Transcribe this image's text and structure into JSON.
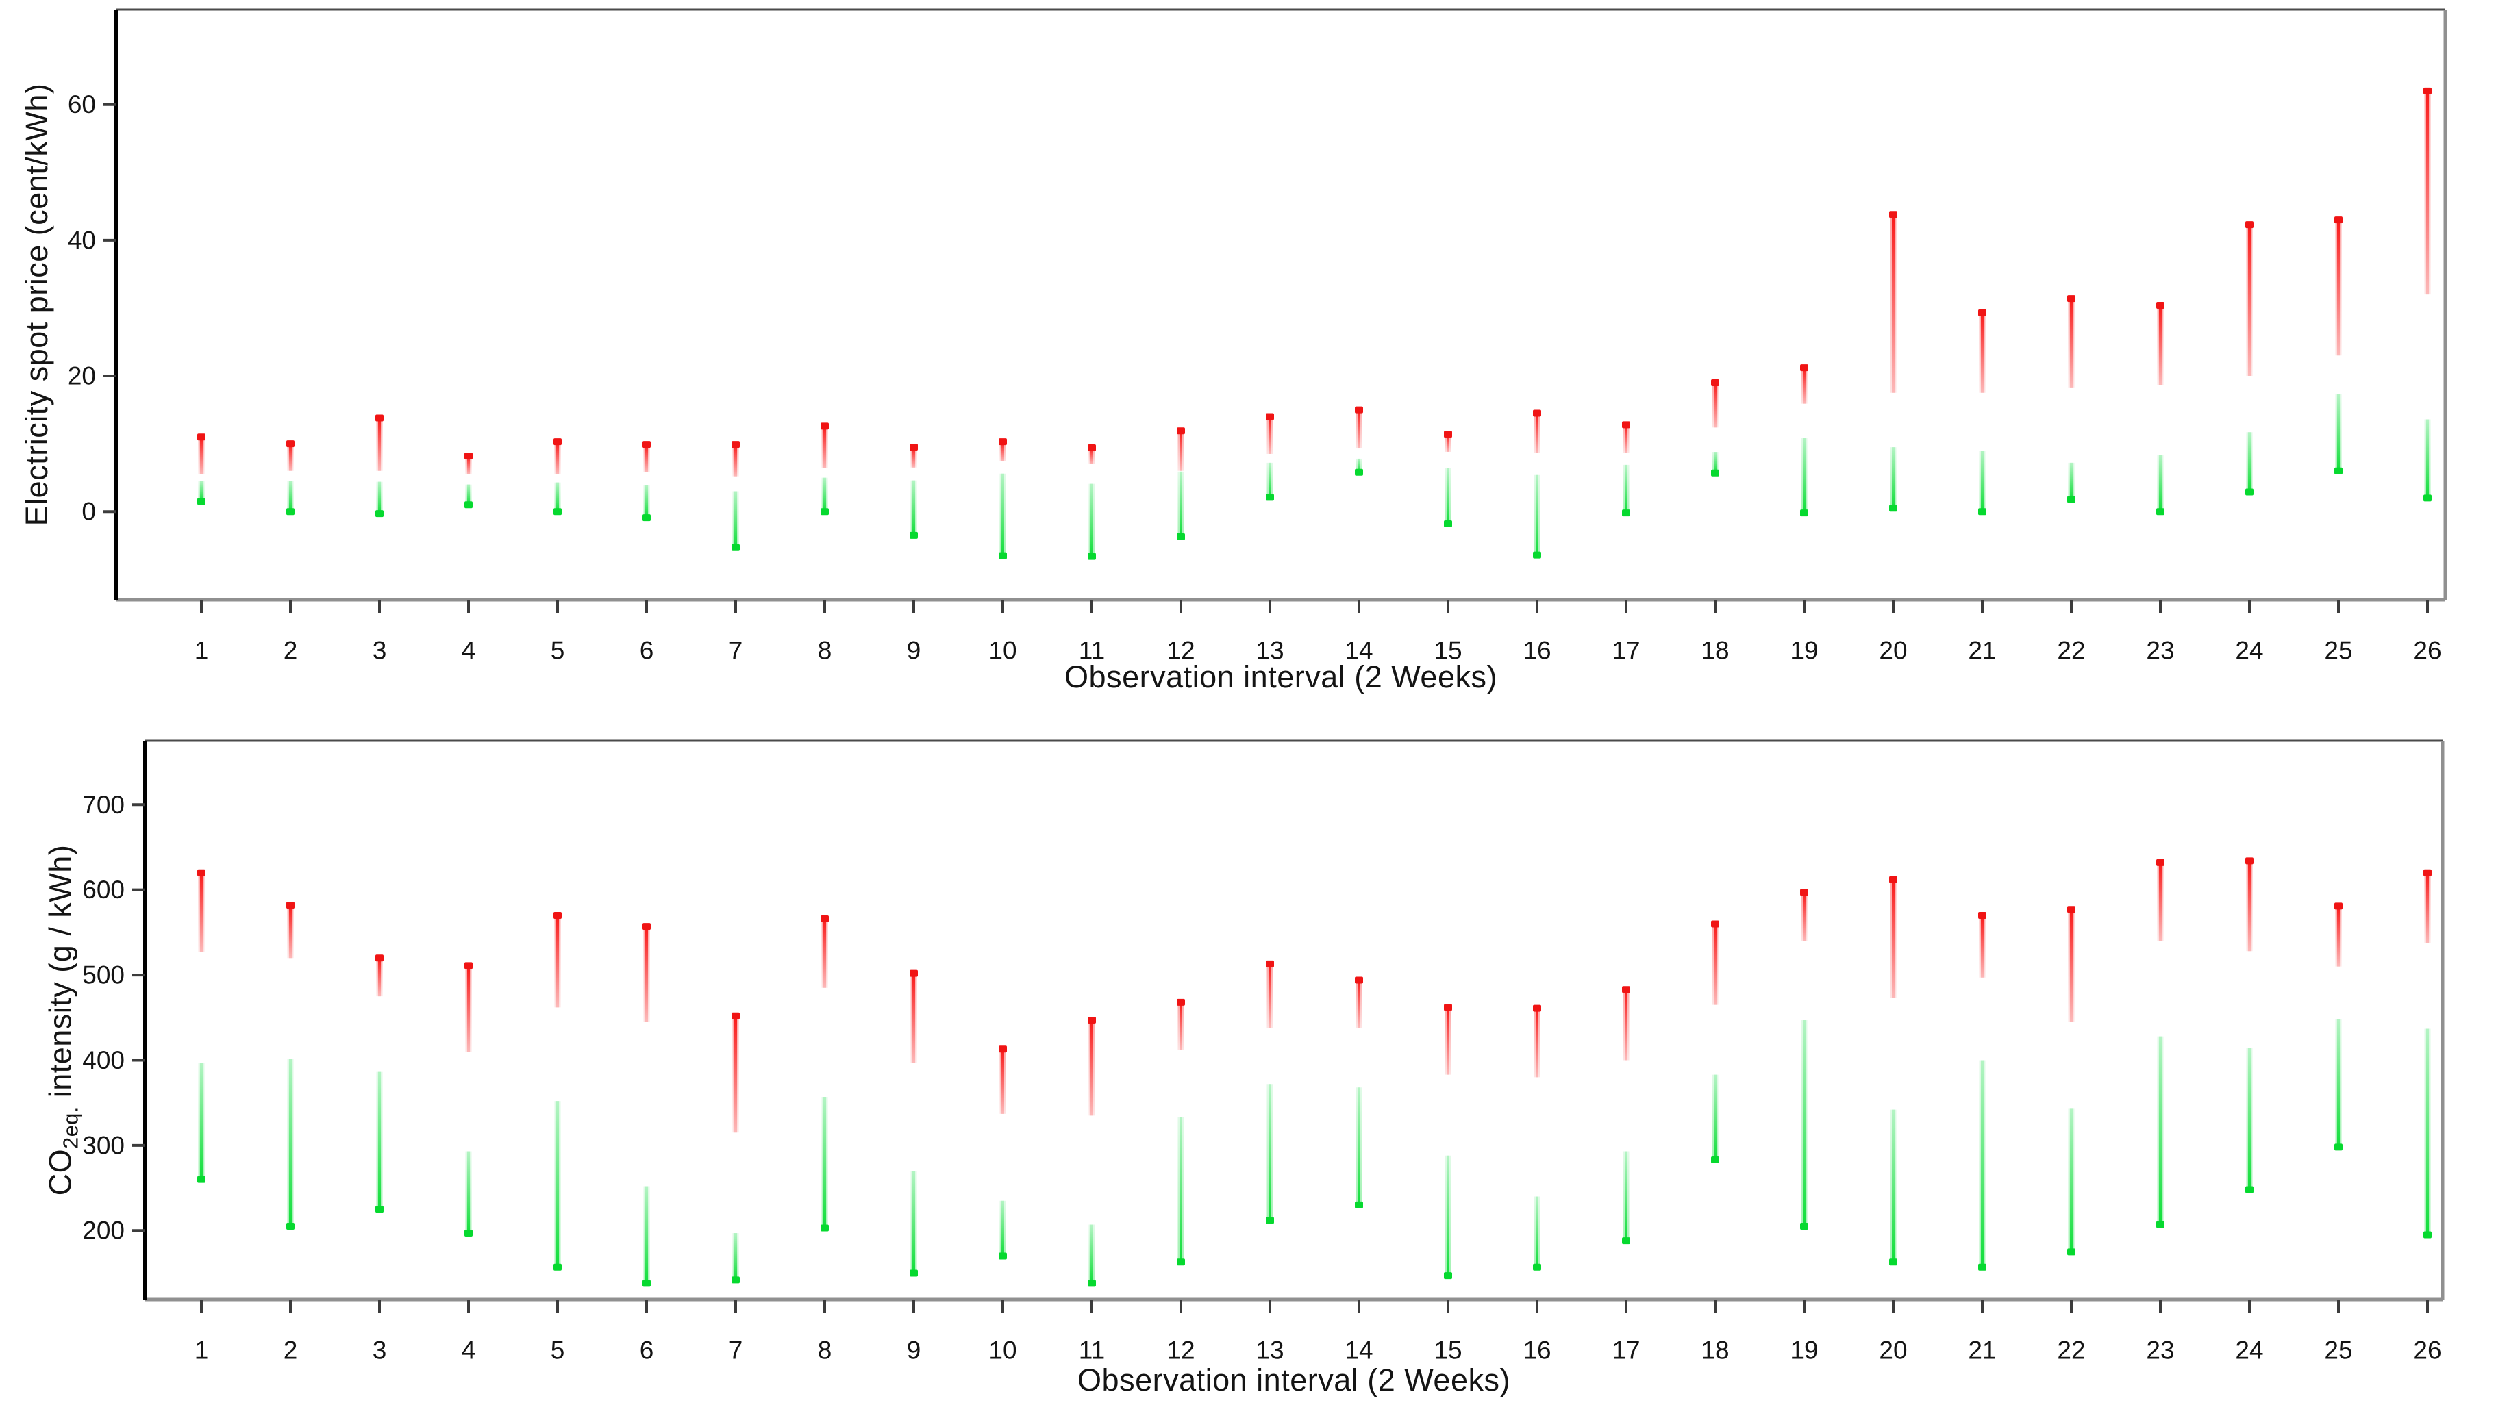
{
  "colors": {
    "background": "#ffffff",
    "axis_frame": "#4a4a4a",
    "axis_frame_light": "#909090",
    "axis_left_accent": "#000000",
    "tick": "#3c3c3c",
    "label_text": "#141414",
    "red_line": "#FA1A1A",
    "red_fade": "#FCB9B9",
    "red_dot": "#F01414",
    "green_line": "#10DF3A",
    "green_fade": "#B4F4C4",
    "green_dot": "#06D92F"
  },
  "chart_data": [
    {
      "type": "rangebar",
      "panel": "top",
      "title": "",
      "xlabel": "Observation interval (2 Weeks)",
      "ylabel": "Electricity spot price (cent/kWh)",
      "categories": [
        1,
        2,
        3,
        4,
        5,
        6,
        7,
        8,
        9,
        10,
        11,
        12,
        13,
        14,
        15,
        16,
        17,
        18,
        19,
        20,
        21,
        22,
        23,
        24,
        25,
        26
      ],
      "yticks": [
        0,
        20,
        40,
        60
      ],
      "ylim": [
        -13,
        74
      ],
      "grid": false,
      "legend": "none",
      "series": [
        {
          "name": "upper-price-range-red",
          "color": "#FA1A1A",
          "fade_color": "#FCB9B9",
          "dot_color": "#F01414",
          "dot_position": "top",
          "ranges": [
            [
              5.5,
              11
            ],
            [
              6,
              10
            ],
            [
              6,
              13.8
            ],
            [
              5.5,
              8.2
            ],
            [
              5.5,
              10.3
            ],
            [
              5.8,
              9.9
            ],
            [
              5.2,
              9.9
            ],
            [
              6.4,
              12.6
            ],
            [
              6.5,
              9.5
            ],
            [
              7.4,
              10.3
            ],
            [
              7,
              9.4
            ],
            [
              6,
              11.9
            ],
            [
              8.5,
              14
            ],
            [
              9.3,
              15
            ],
            [
              8.8,
              11.4
            ],
            [
              8.6,
              14.5
            ],
            [
              8.7,
              12.8
            ],
            [
              12.4,
              19
            ],
            [
              15.9,
              21.2
            ],
            [
              17.5,
              43.8
            ],
            [
              17.5,
              29.3
            ],
            [
              18.3,
              31.4
            ],
            [
              18.6,
              30.4
            ],
            [
              20,
              42.3
            ],
            [
              23,
              43
            ],
            [
              32,
              62
            ]
          ]
        },
        {
          "name": "lower-price-range-green",
          "color": "#10DF3A",
          "fade_color": "#B4F4C4",
          "dot_color": "#06D92F",
          "dot_position": "bottom",
          "ranges": [
            [
              1.5,
              4.5
            ],
            [
              0,
              4.5
            ],
            [
              -0.3,
              4.4
            ],
            [
              1,
              4
            ],
            [
              0,
              4.3
            ],
            [
              -0.9,
              3.9
            ],
            [
              -5.3,
              3
            ],
            [
              0,
              5
            ],
            [
              -3.5,
              4.6
            ],
            [
              -6.5,
              5.6
            ],
            [
              -6.6,
              4.1
            ],
            [
              -3.7,
              5.9
            ],
            [
              2.1,
              7.2
            ],
            [
              5.8,
              7.8
            ],
            [
              -1.8,
              6.4
            ],
            [
              -6.4,
              5.4
            ],
            [
              -0.2,
              6.9
            ],
            [
              5.7,
              8.8
            ],
            [
              -0.2,
              10.9
            ],
            [
              0.5,
              9.5
            ],
            [
              0,
              9
            ],
            [
              1.8,
              7.2
            ],
            [
              0,
              8.4
            ],
            [
              2.9,
              11.7
            ],
            [
              6,
              17.3
            ],
            [
              2,
              13.6
            ]
          ]
        }
      ]
    },
    {
      "type": "rangebar",
      "panel": "bottom",
      "title": "",
      "xlabel": "Observation interval  (2 Weeks)",
      "ylabel": "CO2eq. intensity (g / kWh)",
      "ylabel_parts": [
        {
          "text": "CO"
        },
        {
          "text": "2eq.",
          "sub": true
        },
        {
          "text": " intensity (g / kWh)"
        }
      ],
      "categories": [
        1,
        2,
        3,
        4,
        5,
        6,
        7,
        8,
        9,
        10,
        11,
        12,
        13,
        14,
        15,
        16,
        17,
        18,
        19,
        20,
        21,
        22,
        23,
        24,
        25,
        26
      ],
      "yticks": [
        200,
        300,
        400,
        500,
        600,
        700
      ],
      "ylim": [
        119,
        775
      ],
      "grid": false,
      "legend": "none",
      "series": [
        {
          "name": "upper-co2-range-red",
          "color": "#FA1A1A",
          "fade_color": "#FCB9B9",
          "dot_color": "#F01414",
          "dot_position": "top",
          "ranges": [
            [
              527,
              620
            ],
            [
              520,
              582
            ],
            [
              475,
              520
            ],
            [
              410,
              511
            ],
            [
              462,
              570
            ],
            [
              445,
              557
            ],
            [
              315,
              452
            ],
            [
              485,
              566
            ],
            [
              397,
              502
            ],
            [
              337,
              413
            ],
            [
              335,
              447
            ],
            [
              412,
              468
            ],
            [
              438,
              513
            ],
            [
              438,
              494
            ],
            [
              383,
              462
            ],
            [
              380,
              461
            ],
            [
              400,
              483
            ],
            [
              465,
              560
            ],
            [
              540,
              597
            ],
            [
              473,
              612
            ],
            [
              497,
              570
            ],
            [
              445,
              577
            ],
            [
              540,
              632
            ],
            [
              528,
              634
            ],
            [
              510,
              581
            ],
            [
              537,
              620
            ]
          ]
        },
        {
          "name": "lower-co2-range-green",
          "color": "#10DF3A",
          "fade_color": "#B4F4C4",
          "dot_color": "#06D92F",
          "dot_position": "bottom",
          "ranges": [
            [
              260,
              397
            ],
            [
              205,
              402
            ],
            [
              225,
              387
            ],
            [
              197,
              293
            ],
            [
              157,
              352
            ],
            [
              138,
              252
            ],
            [
              142,
              197
            ],
            [
              203,
              357
            ],
            [
              150,
              270
            ],
            [
              170,
              235
            ],
            [
              138,
              207
            ],
            [
              163,
              333
            ],
            [
              212,
              372
            ],
            [
              230,
              368
            ],
            [
              147,
              288
            ],
            [
              157,
              240
            ],
            [
              188,
              293
            ],
            [
              283,
              383
            ],
            [
              205,
              447
            ],
            [
              163,
              342
            ],
            [
              157,
              400
            ],
            [
              175,
              343
            ],
            [
              207,
              428
            ],
            [
              248,
              414
            ],
            [
              298,
              448
            ],
            [
              195,
              437
            ]
          ]
        }
      ]
    }
  ]
}
